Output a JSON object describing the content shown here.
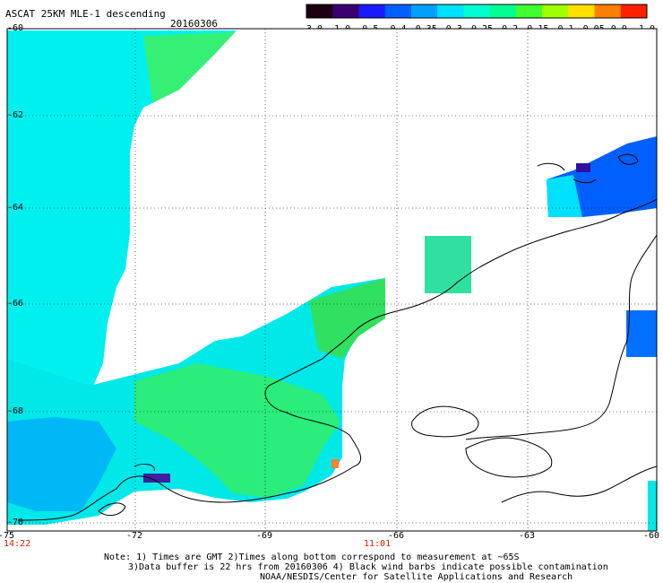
{
  "header": {
    "title": "ASCAT 25KM MLE-1 descending",
    "date": "20160306"
  },
  "colorbar": {
    "ticks": [
      "-3.0",
      "-1.0",
      "-0.5",
      "-0.4",
      "-0.35",
      "-0.3",
      "-0.25",
      "-0.2",
      "-0.15",
      "-0.1",
      "-0.05",
      "0.0",
      "1.0"
    ],
    "colors": [
      "#1a0010",
      "#3a0070",
      "#1a1aff",
      "#0060ff",
      "#00a0ff",
      "#00e0ff",
      "#00ffd0",
      "#00ff90",
      "#40ff30",
      "#a0ff00",
      "#ffe000",
      "#ff8000",
      "#ff2000"
    ]
  },
  "axes": {
    "lon_labels": [
      "-75",
      "-72",
      "-69",
      "-66",
      "-63",
      "-60"
    ],
    "lat_labels": [
      "-60",
      "-62",
      "-64",
      "-66",
      "-68",
      "-70"
    ]
  },
  "times": {
    "left": "14:22",
    "middle": "11:01"
  },
  "notes": {
    "line1": "Note: 1) Times are GMT 2)Times along bottom correspond to measurement at ~65S",
    "line2": "3)Data buffer is 22 hrs from 20160306 4) Black wind barbs indicate possible contamination",
    "line3": "NOAA/NESDIS/Center for Satellite Applications and Research"
  }
}
